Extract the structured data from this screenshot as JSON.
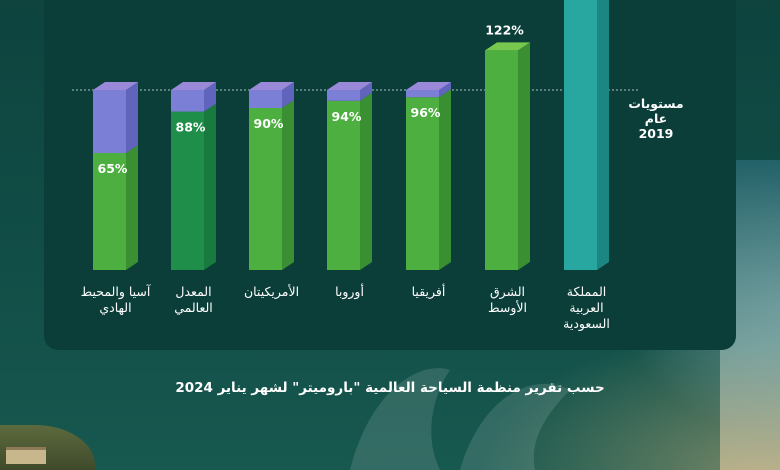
{
  "chart_data": {
    "type": "bar",
    "subtype": "3d-stacked-bar",
    "categories": [
      [
        "آسيا والمحيط",
        "الهادي"
      ],
      [
        "المعدل",
        "العالمي"
      ],
      [
        "الأمريكيتان"
      ],
      [
        "أوروبا"
      ],
      [
        "أفريقيا"
      ],
      [
        "الشرق",
        "الأوسط"
      ],
      [
        "المملكة",
        "العربية",
        "السعودية"
      ]
    ],
    "values": [
      65,
      88,
      90,
      94,
      96,
      122,
      156
    ],
    "labels": [
      "65%",
      "88%",
      "90%",
      "94%",
      "96%",
      "122%",
      ""
    ],
    "reference_line": {
      "value": 100,
      "label_lines": [
        "مستويات عام",
        "2019"
      ]
    },
    "ylim": [
      0,
      160
    ],
    "grid": false,
    "colors": {
      "green_front": "#4caf3f",
      "green_side": "#3b8f33",
      "green_top": "#78c84f",
      "world_front": "#1f8e4a",
      "world_side": "#187a3e",
      "world_top": "#38aa60",
      "gap_front": "#7c7fd6",
      "gap_side": "#6164bd",
      "gap_top": "#9a89d8",
      "teal_front": "#27a7a0",
      "teal_side": "#1c8782",
      "teal_top": "#43c2b8"
    }
  },
  "footer": {
    "source": "حسب تقرير منظمة السياحة العالمية \"باروميتر\" لشهر يناير 2024"
  }
}
